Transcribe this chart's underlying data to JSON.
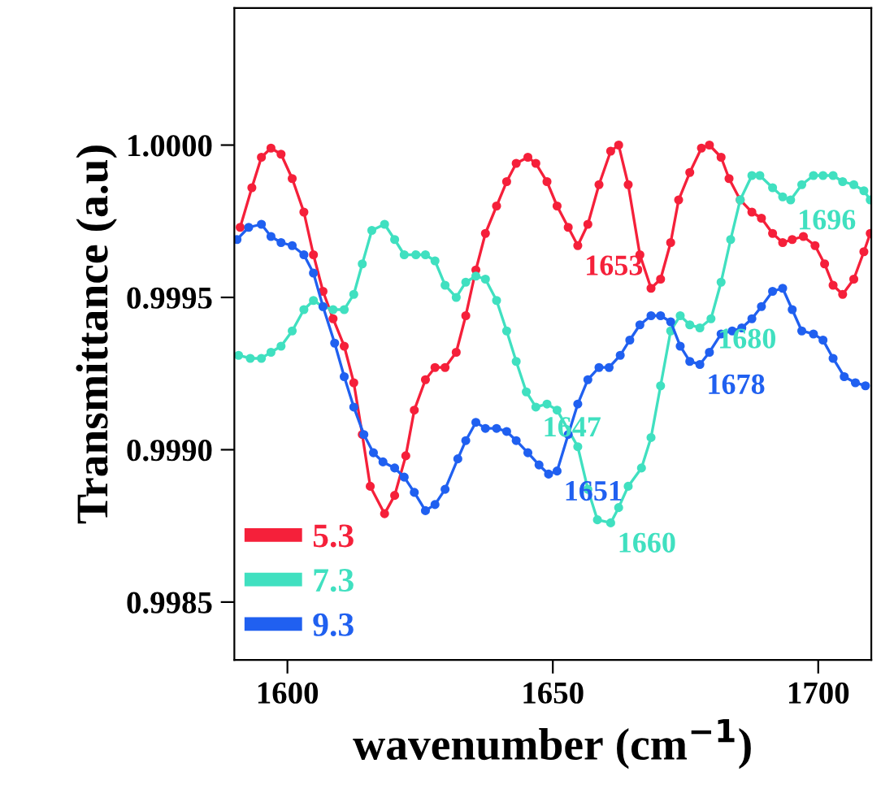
{
  "chart_data": {
    "type": "line",
    "xlabel": "wavenumber (cm$^{−1}$)",
    "ylabel": "Transmittance (a.u)",
    "xlim": [
      1590,
      1710
    ],
    "ylim": [
      0.99831,
      1.00045
    ],
    "xticks": [
      1600,
      1650,
      1700
    ],
    "yticks": [
      {
        "value": 0.9985,
        "label": "0.9985"
      },
      {
        "value": 0.999,
        "label": "0.9990"
      },
      {
        "value": 0.9995,
        "label": "0.9995"
      },
      {
        "value": 1.0,
        "label": "1.0000"
      }
    ],
    "grid": false,
    "legend": "bottom left",
    "marker": "circle",
    "line_style": "solid",
    "series": [
      {
        "name": "5.3",
        "color": "#f5203a",
        "x": [
          1591.1,
          1593.3,
          1595.1,
          1596.9,
          1598.8,
          1600.9,
          1603.1,
          1604.9,
          1606.7,
          1608.6,
          1610.7,
          1612.5,
          1614.1,
          1615.6,
          1618.3,
          1620.2,
          1622.3,
          1623.9,
          1626.0,
          1627.8,
          1629.7,
          1631.8,
          1633.6,
          1635.5,
          1637.3,
          1639.4,
          1641.3,
          1643.1,
          1645.3,
          1646.8,
          1648.9,
          1650.8,
          1652.9,
          1654.7,
          1656.6,
          1658.7,
          1660.9,
          1662.4,
          1664.2,
          1666.4,
          1668.5,
          1670.3,
          1672.2,
          1673.7,
          1675.8,
          1678.0,
          1679.5,
          1681.7,
          1683.2,
          1685.3,
          1687.5,
          1689.3,
          1691.4,
          1693.3,
          1695.1,
          1697.2,
          1699.4,
          1701.2,
          1702.8,
          1704.6,
          1706.7,
          1708.6,
          1709.8
        ],
        "values": [
          0.99973,
          0.99986,
          0.99996,
          0.99999,
          0.99997,
          0.99989,
          0.99978,
          0.99964,
          0.99952,
          0.99943,
          0.99934,
          0.99922,
          0.99905,
          0.99888,
          0.99879,
          0.99885,
          0.99898,
          0.99913,
          0.99923,
          0.99927,
          0.99927,
          0.99932,
          0.99944,
          0.99959,
          0.99971,
          0.9998,
          0.99988,
          0.99994,
          0.99996,
          0.99994,
          0.99988,
          0.9998,
          0.99973,
          0.99967,
          0.99974,
          0.99987,
          0.99998,
          1.0,
          0.99987,
          0.99964,
          0.99953,
          0.99956,
          0.99968,
          0.99982,
          0.99991,
          0.99999,
          1.0,
          0.99996,
          0.99989,
          0.99982,
          0.99978,
          0.99976,
          0.99971,
          0.99968,
          0.99969,
          0.9997,
          0.99967,
          0.99961,
          0.99954,
          0.99951,
          0.99956,
          0.99965,
          0.99971
        ]
      },
      {
        "name": "7.3",
        "color": "#40e0c0",
        "x": [
          1590.8,
          1593.0,
          1595.1,
          1596.9,
          1598.8,
          1600.9,
          1603.1,
          1604.9,
          1606.7,
          1608.6,
          1610.7,
          1612.5,
          1614.1,
          1615.9,
          1618.3,
          1620.2,
          1622.0,
          1624.2,
          1626.0,
          1627.8,
          1629.7,
          1631.8,
          1633.6,
          1635.5,
          1637.3,
          1639.4,
          1641.3,
          1643.1,
          1645.0,
          1646.8,
          1648.9,
          1650.8,
          1654.7,
          1656.6,
          1658.4,
          1660.9,
          1662.4,
          1664.2,
          1666.7,
          1668.5,
          1670.3,
          1672.2,
          1674.0,
          1675.8,
          1677.7,
          1679.8,
          1681.7,
          1683.5,
          1685.3,
          1687.5,
          1689.0,
          1691.4,
          1693.3,
          1694.8,
          1696.9,
          1699.1,
          1700.9,
          1702.8,
          1704.6,
          1706.7,
          1708.6,
          1709.8
        ],
        "values": [
          0.99931,
          0.9993,
          0.9993,
          0.99932,
          0.99934,
          0.99939,
          0.99946,
          0.99949,
          0.99947,
          0.99946,
          0.99946,
          0.99951,
          0.99961,
          0.99972,
          0.99974,
          0.99969,
          0.99964,
          0.99964,
          0.99964,
          0.99962,
          0.99954,
          0.9995,
          0.99955,
          0.99957,
          0.99956,
          0.99949,
          0.99939,
          0.99929,
          0.99919,
          0.99914,
          0.99915,
          0.99913,
          0.99901,
          0.99887,
          0.99877,
          0.99876,
          0.99881,
          0.99888,
          0.99894,
          0.99904,
          0.99921,
          0.99939,
          0.99944,
          0.99941,
          0.9994,
          0.99943,
          0.99955,
          0.99969,
          0.99982,
          0.9999,
          0.9999,
          0.99986,
          0.99983,
          0.99982,
          0.99987,
          0.9999,
          0.9999,
          0.9999,
          0.99988,
          0.99987,
          0.99985,
          0.99982
        ]
      },
      {
        "name": "9.3",
        "color": "#2060f0",
        "x": [
          1590.5,
          1592.7,
          1595.1,
          1596.9,
          1598.8,
          1600.9,
          1603.1,
          1604.9,
          1606.7,
          1608.9,
          1610.7,
          1612.5,
          1614.4,
          1616.2,
          1618.0,
          1620.2,
          1622.0,
          1623.9,
          1626.0,
          1627.8,
          1629.7,
          1632.1,
          1633.6,
          1635.5,
          1637.3,
          1639.4,
          1641.3,
          1643.1,
          1645.3,
          1647.4,
          1649.2,
          1650.8,
          1652.9,
          1654.7,
          1656.6,
          1658.7,
          1660.6,
          1662.7,
          1664.5,
          1666.4,
          1668.5,
          1670.3,
          1672.2,
          1674.0,
          1675.8,
          1677.7,
          1679.5,
          1681.7,
          1683.8,
          1685.6,
          1687.5,
          1689.3,
          1691.4,
          1693.3,
          1695.1,
          1696.9,
          1699.1,
          1700.9,
          1702.8,
          1704.9,
          1707.0,
          1708.9
        ],
        "values": [
          0.99969,
          0.99973,
          0.99974,
          0.9997,
          0.99968,
          0.99967,
          0.99964,
          0.99958,
          0.99947,
          0.99935,
          0.99924,
          0.99914,
          0.99905,
          0.99899,
          0.99896,
          0.99894,
          0.99891,
          0.99886,
          0.9988,
          0.99882,
          0.99887,
          0.99897,
          0.99903,
          0.99909,
          0.99907,
          0.99907,
          0.99906,
          0.99903,
          0.99899,
          0.99895,
          0.99892,
          0.99893,
          0.99905,
          0.99915,
          0.99923,
          0.99927,
          0.99927,
          0.99931,
          0.99936,
          0.99941,
          0.99944,
          0.99944,
          0.99942,
          0.99934,
          0.99929,
          0.99928,
          0.99932,
          0.99938,
          0.99939,
          0.9994,
          0.99943,
          0.99947,
          0.99952,
          0.99953,
          0.99946,
          0.99939,
          0.99938,
          0.99936,
          0.9993,
          0.99924,
          0.99922,
          0.99921
        ]
      }
    ],
    "annotations": [
      {
        "text": "1653",
        "x": 1654.7,
        "y": 0.99967
      },
      {
        "text": "1696",
        "x": 1694.8,
        "y": 0.99982
      },
      {
        "text": "1680",
        "x": 1679.8,
        "y": 0.99943
      },
      {
        "text": "1678",
        "x": 1677.7,
        "y": 0.99928
      },
      {
        "text": "1647",
        "x": 1646.8,
        "y": 0.99914
      },
      {
        "text": "1651",
        "x": 1650.8,
        "y": 0.99893
      },
      {
        "text": "1660",
        "x": 1660.9,
        "y": 0.99876
      }
    ]
  }
}
